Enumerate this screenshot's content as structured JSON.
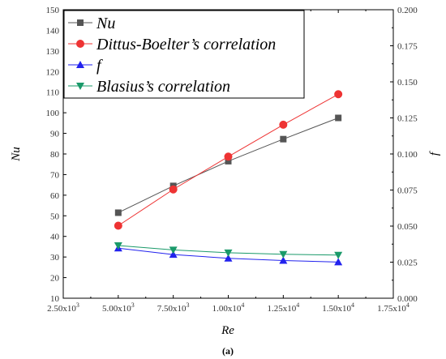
{
  "chart_data": {
    "type": "line",
    "x_label": "Re",
    "y_left_label": "Nu",
    "y_right_label": "f",
    "caption": "(a)",
    "x_range": [
      2500,
      17500
    ],
    "x_ticks": [
      2500,
      5000,
      7500,
      10000,
      12500,
      15000,
      17500
    ],
    "x_tick_labels": [
      {
        "mant": "2.50x10",
        "exp": "3"
      },
      {
        "mant": "5.00x10",
        "exp": "3"
      },
      {
        "mant": "7.50x10",
        "exp": "3"
      },
      {
        "mant": "1.00x10",
        "exp": "4"
      },
      {
        "mant": "1.25x10",
        "exp": "4"
      },
      {
        "mant": "1.50x10",
        "exp": "4"
      },
      {
        "mant": "1.75x10",
        "exp": "4"
      }
    ],
    "y_left_range": [
      10,
      150
    ],
    "y_left_ticks": [
      10,
      20,
      30,
      40,
      50,
      60,
      70,
      80,
      90,
      100,
      110,
      120,
      130,
      140,
      150
    ],
    "y_left_tick_labels": [
      "10",
      "20",
      "30",
      "40",
      "50",
      "60",
      "70",
      "80",
      "90",
      "100",
      "110",
      "120",
      "130",
      "140",
      "150"
    ],
    "y_right_range": [
      0,
      0.2
    ],
    "y_right_ticks": [
      0,
      0.025,
      0.05,
      0.075,
      0.1,
      0.125,
      0.15,
      0.175,
      0.2
    ],
    "y_right_tick_labels": [
      "0.000",
      "0.025",
      "0.050",
      "0.075",
      "0.100",
      "0.125",
      "0.150",
      "0.175",
      "0.200"
    ],
    "x": [
      5000,
      7500,
      10000,
      12500,
      15000
    ],
    "series": [
      {
        "name": "Nu",
        "axis": "left",
        "marker": "square",
        "color": "#555555",
        "values": [
          51.5,
          64.5,
          76.5,
          87.2,
          97.5
        ]
      },
      {
        "name": "Dittus-Boelter’s correlation",
        "axis": "left",
        "marker": "circle",
        "color": "#ee3333",
        "values": [
          45.2,
          62.8,
          78.7,
          94.2,
          109
        ]
      },
      {
        "name": "f",
        "axis": "right",
        "marker": "triangle-up",
        "color": "#2222ee",
        "values": [
          0.0347,
          0.0303,
          0.0277,
          0.0261,
          0.0251
        ]
      },
      {
        "name": "Blasius’s correlation",
        "axis": "right",
        "marker": "triangle-down",
        "color": "#1a9a6a",
        "values": [
          0.0365,
          0.0335,
          0.0315,
          0.0305,
          0.0299
        ]
      }
    ]
  }
}
